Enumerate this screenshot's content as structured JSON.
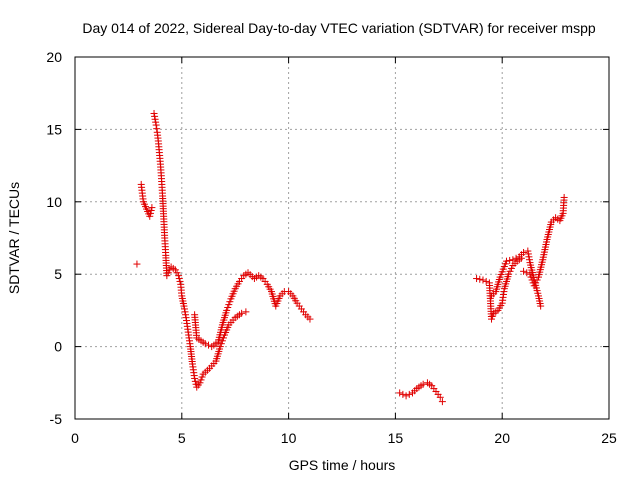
{
  "chart_data": {
    "type": "scatter",
    "title": "Day 014 of 2022, Sidereal Day-to-day VTEC variation (SDTVAR) for receiver mspp",
    "xlabel": "GPS time / hours",
    "ylabel": "SDTVAR / TECUs",
    "xlim": [
      0,
      25
    ],
    "ylim": [
      -5,
      20
    ],
    "xticks": [
      "0",
      "5",
      "10",
      "15",
      "20",
      "25"
    ],
    "yticks": [
      "-5",
      "0",
      "5",
      "10",
      "15",
      "20"
    ],
    "grid": true,
    "marker": "+",
    "marker_color": "#e00000",
    "series": [
      {
        "name": "mspp",
        "points": [
          [
            2.9,
            5.7
          ],
          [
            3.1,
            11.2
          ],
          [
            3.15,
            10.6
          ],
          [
            3.2,
            10.0
          ],
          [
            3.5,
            9.0
          ],
          [
            3.6,
            9.6
          ],
          [
            3.7,
            16.1
          ],
          [
            3.75,
            15.7
          ],
          [
            3.8,
            15.3
          ],
          [
            3.85,
            14.8
          ],
          [
            3.9,
            14.2
          ],
          [
            3.95,
            13.4
          ],
          [
            4.0,
            12.6
          ],
          [
            4.05,
            11.6
          ],
          [
            4.1,
            10.4
          ],
          [
            4.15,
            9.0
          ],
          [
            4.2,
            7.5
          ],
          [
            4.25,
            6.3
          ],
          [
            4.3,
            4.9
          ],
          [
            4.5,
            5.5
          ],
          [
            4.7,
            5.3
          ],
          [
            4.85,
            4.9
          ],
          [
            4.95,
            4.3
          ],
          [
            5.0,
            3.5
          ],
          [
            5.1,
            2.8
          ],
          [
            5.2,
            2.0
          ],
          [
            5.3,
            1.0
          ],
          [
            5.4,
            0.0
          ],
          [
            5.5,
            -1.2
          ],
          [
            5.6,
            -2.2
          ],
          [
            5.7,
            -2.8
          ],
          [
            5.85,
            -2.5
          ],
          [
            6.0,
            -1.9
          ],
          [
            6.3,
            -1.5
          ],
          [
            6.6,
            -1.0
          ],
          [
            6.8,
            0.0
          ],
          [
            7.0,
            0.8
          ],
          [
            7.2,
            1.5
          ],
          [
            7.5,
            2.0
          ],
          [
            7.8,
            2.3
          ],
          [
            8.0,
            2.4
          ],
          [
            5.6,
            2.2
          ],
          [
            5.7,
            0.6
          ],
          [
            5.9,
            0.4
          ],
          [
            6.1,
            0.2
          ],
          [
            6.4,
            0.0
          ],
          [
            6.7,
            0.3
          ],
          [
            6.9,
            1.5
          ],
          [
            7.1,
            2.5
          ],
          [
            7.3,
            3.3
          ],
          [
            7.5,
            4.0
          ],
          [
            7.7,
            4.5
          ],
          [
            7.9,
            4.9
          ],
          [
            8.1,
            5.1
          ],
          [
            8.4,
            4.7
          ],
          [
            8.6,
            4.9
          ],
          [
            8.8,
            4.7
          ],
          [
            9.0,
            4.3
          ],
          [
            9.2,
            3.8
          ],
          [
            9.4,
            2.8
          ],
          [
            9.6,
            3.5
          ],
          [
            9.8,
            3.8
          ],
          [
            10.0,
            3.8
          ],
          [
            10.2,
            3.5
          ],
          [
            10.4,
            3.0
          ],
          [
            10.6,
            2.6
          ],
          [
            10.8,
            2.2
          ],
          [
            11.0,
            1.9
          ],
          [
            15.2,
            -3.2
          ],
          [
            15.5,
            -3.4
          ],
          [
            15.8,
            -3.2
          ],
          [
            16.0,
            -2.9
          ],
          [
            16.3,
            -2.6
          ],
          [
            16.5,
            -2.5
          ],
          [
            16.7,
            -2.7
          ],
          [
            16.9,
            -3.1
          ],
          [
            17.1,
            -3.5
          ],
          [
            17.2,
            -3.8
          ],
          [
            18.8,
            4.7
          ],
          [
            19.1,
            4.6
          ],
          [
            19.4,
            4.4
          ],
          [
            19.5,
            1.9
          ],
          [
            19.6,
            2.3
          ],
          [
            19.8,
            2.5
          ],
          [
            20.0,
            3.0
          ],
          [
            20.1,
            4.0
          ],
          [
            20.3,
            5.0
          ],
          [
            20.5,
            5.6
          ],
          [
            20.7,
            5.9
          ],
          [
            20.9,
            6.1
          ],
          [
            19.5,
            3.5
          ],
          [
            19.7,
            3.8
          ],
          [
            19.9,
            4.8
          ],
          [
            20.2,
            5.9
          ],
          [
            20.5,
            6.0
          ],
          [
            20.8,
            6.2
          ],
          [
            21.0,
            6.5
          ],
          [
            21.2,
            6.6
          ],
          [
            21.3,
            5.8
          ],
          [
            21.5,
            4.6
          ],
          [
            21.7,
            3.5
          ],
          [
            21.8,
            2.8
          ],
          [
            21.0,
            5.2
          ],
          [
            21.3,
            5.0
          ],
          [
            21.5,
            4.2
          ],
          [
            21.7,
            4.8
          ],
          [
            21.9,
            6.0
          ],
          [
            22.1,
            7.4
          ],
          [
            22.3,
            8.6
          ],
          [
            22.5,
            8.9
          ],
          [
            22.7,
            8.7
          ],
          [
            22.85,
            9.2
          ],
          [
            22.9,
            10.3
          ]
        ]
      }
    ]
  }
}
